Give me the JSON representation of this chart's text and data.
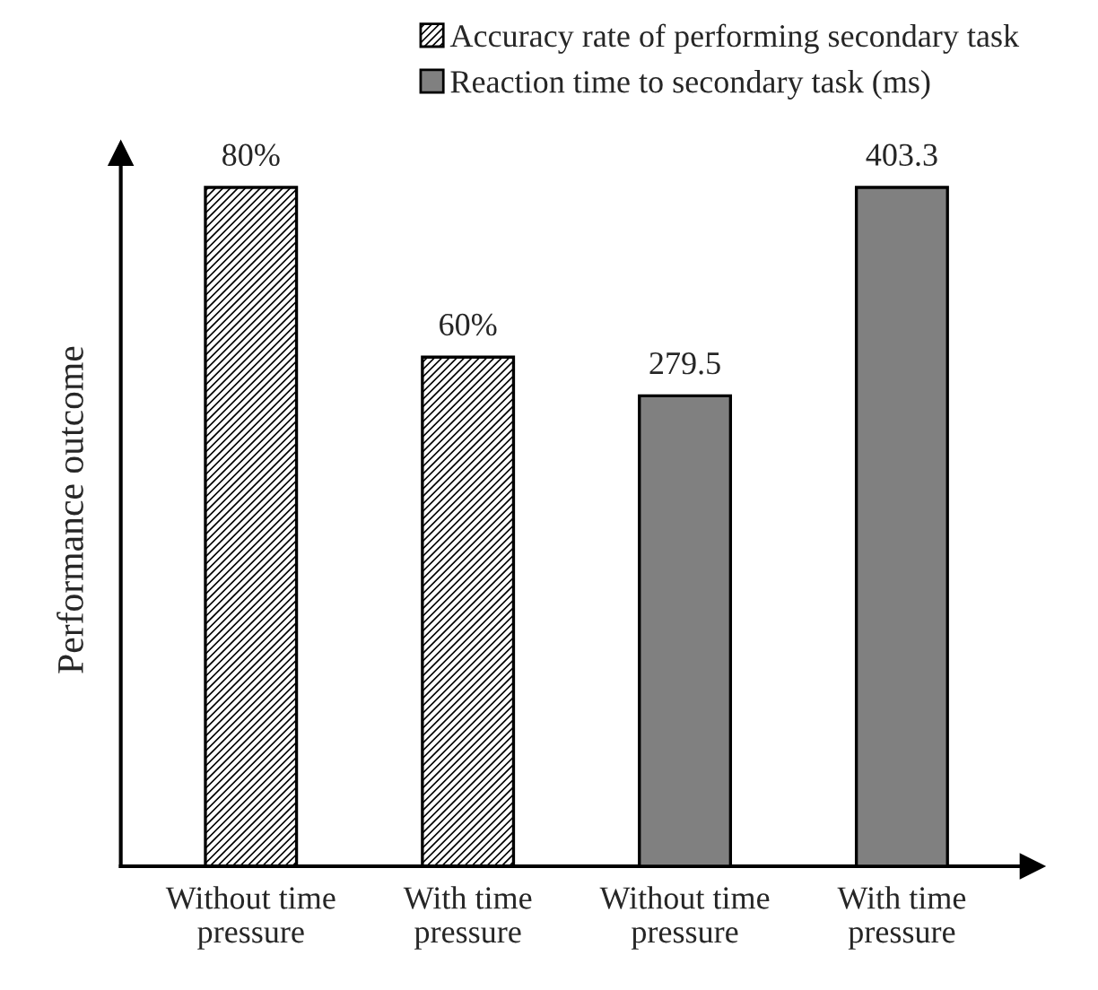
{
  "chart_data": {
    "type": "bar",
    "ylabel": "Performance outcome",
    "categories": [
      "Without time\npressure",
      "With time\npressure",
      "Without time\npressure",
      "With time\npressure"
    ],
    "series": [
      {
        "name": "Accuracy rate of performing secondary task",
        "color": "#000000",
        "values": [
          80,
          60,
          null,
          null
        ],
        "value_labels": [
          "80%",
          "60%",
          null,
          null
        ]
      },
      {
        "name": "Reaction time to secondary task (ms)",
        "color": "#808080",
        "axis": "y2",
        "values": [
          null,
          null,
          279.5,
          403.3
        ],
        "value_labels": [
          null,
          null,
          "279.5",
          "403.3"
        ]
      }
    ],
    "legend": "top right",
    "tick_labels": "x",
    "grid": false
  }
}
